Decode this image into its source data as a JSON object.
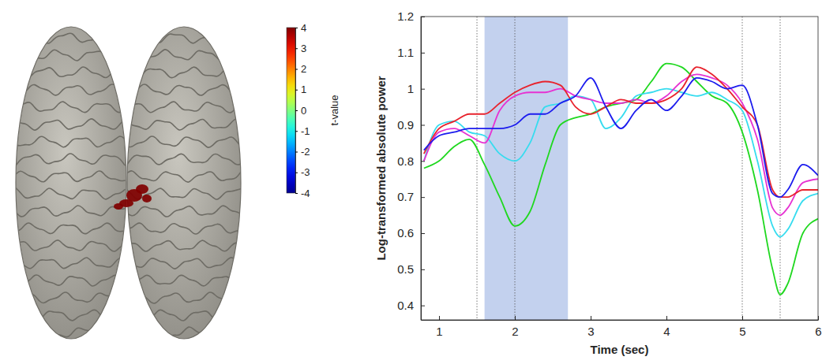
{
  "chart_data": [
    {
      "type": "surface_map",
      "colorbar": {
        "title": "t-value",
        "range": [
          -4,
          4
        ],
        "ticks": [
          -4,
          -3,
          -2,
          -1,
          0,
          1,
          2,
          3,
          4
        ]
      }
    },
    {
      "type": "line",
      "x_label": "Time (sec)",
      "y_label": "Log-transformed absolute power",
      "x": [
        0.8,
        1.0,
        1.2,
        1.4,
        1.6,
        1.8,
        2.0,
        2.2,
        2.4,
        2.6,
        2.8,
        3.0,
        3.2,
        3.4,
        3.6,
        3.8,
        4.0,
        4.2,
        4.4,
        4.6,
        4.8,
        5.0,
        5.2,
        5.4,
        5.5,
        5.6,
        5.8,
        6.0
      ],
      "series": [
        {
          "color": "#1fd81f",
          "values": [
            0.78,
            0.8,
            0.84,
            0.86,
            0.79,
            0.7,
            0.62,
            0.66,
            0.79,
            0.9,
            0.92,
            0.93,
            0.95,
            0.96,
            0.97,
            1.02,
            1.07,
            1.06,
            1.02,
            0.98,
            0.96,
            0.88,
            0.72,
            0.5,
            0.43,
            0.46,
            0.6,
            0.64
          ]
        },
        {
          "color": "#36dcef",
          "values": [
            0.8,
            0.9,
            0.91,
            0.88,
            0.87,
            0.82,
            0.8,
            0.85,
            0.95,
            0.96,
            0.98,
            0.97,
            0.89,
            0.92,
            0.98,
            0.99,
            1.0,
            0.99,
            0.98,
            0.99,
            0.97,
            0.94,
            0.8,
            0.62,
            0.59,
            0.61,
            0.69,
            0.71
          ]
        },
        {
          "color": "#e632d2",
          "values": [
            0.8,
            0.88,
            0.89,
            0.87,
            0.85,
            0.94,
            0.98,
            0.99,
            0.99,
            1.0,
            0.98,
            0.97,
            0.96,
            0.96,
            0.97,
            0.96,
            0.98,
            1.02,
            1.04,
            1.03,
            1.01,
            0.96,
            0.86,
            0.67,
            0.65,
            0.67,
            0.74,
            0.75
          ]
        },
        {
          "color": "#e8232d",
          "values": [
            0.82,
            0.89,
            0.91,
            0.93,
            0.93,
            0.96,
            0.99,
            1.01,
            1.02,
            1.01,
            0.95,
            0.93,
            0.95,
            0.97,
            0.96,
            0.96,
            0.97,
            1.0,
            1.06,
            1.04,
            1.0,
            0.95,
            0.9,
            0.72,
            0.7,
            0.7,
            0.72,
            0.72
          ]
        },
        {
          "color": "#1c1cee",
          "values": [
            0.83,
            0.87,
            0.88,
            0.89,
            0.89,
            0.89,
            0.9,
            0.93,
            0.93,
            0.96,
            0.98,
            1.03,
            0.95,
            0.89,
            0.94,
            0.97,
            0.94,
            0.98,
            1.03,
            1.02,
            1.0,
            1.01,
            0.9,
            0.71,
            0.7,
            0.72,
            0.79,
            0.76
          ]
        }
      ],
      "xlim": [
        0.76,
        6
      ],
      "ylim": [
        0.36,
        1.2
      ],
      "xticks": [
        1,
        2,
        3,
        4,
        5,
        6
      ],
      "yticks": [
        0.4,
        0.5,
        0.6,
        0.7,
        0.8,
        0.9,
        1,
        1.1,
        1.2
      ],
      "event_lines": [
        1.5,
        2,
        5,
        5.5
      ],
      "highlight": [
        1.6,
        2.7
      ],
      "grid": false
    }
  ]
}
